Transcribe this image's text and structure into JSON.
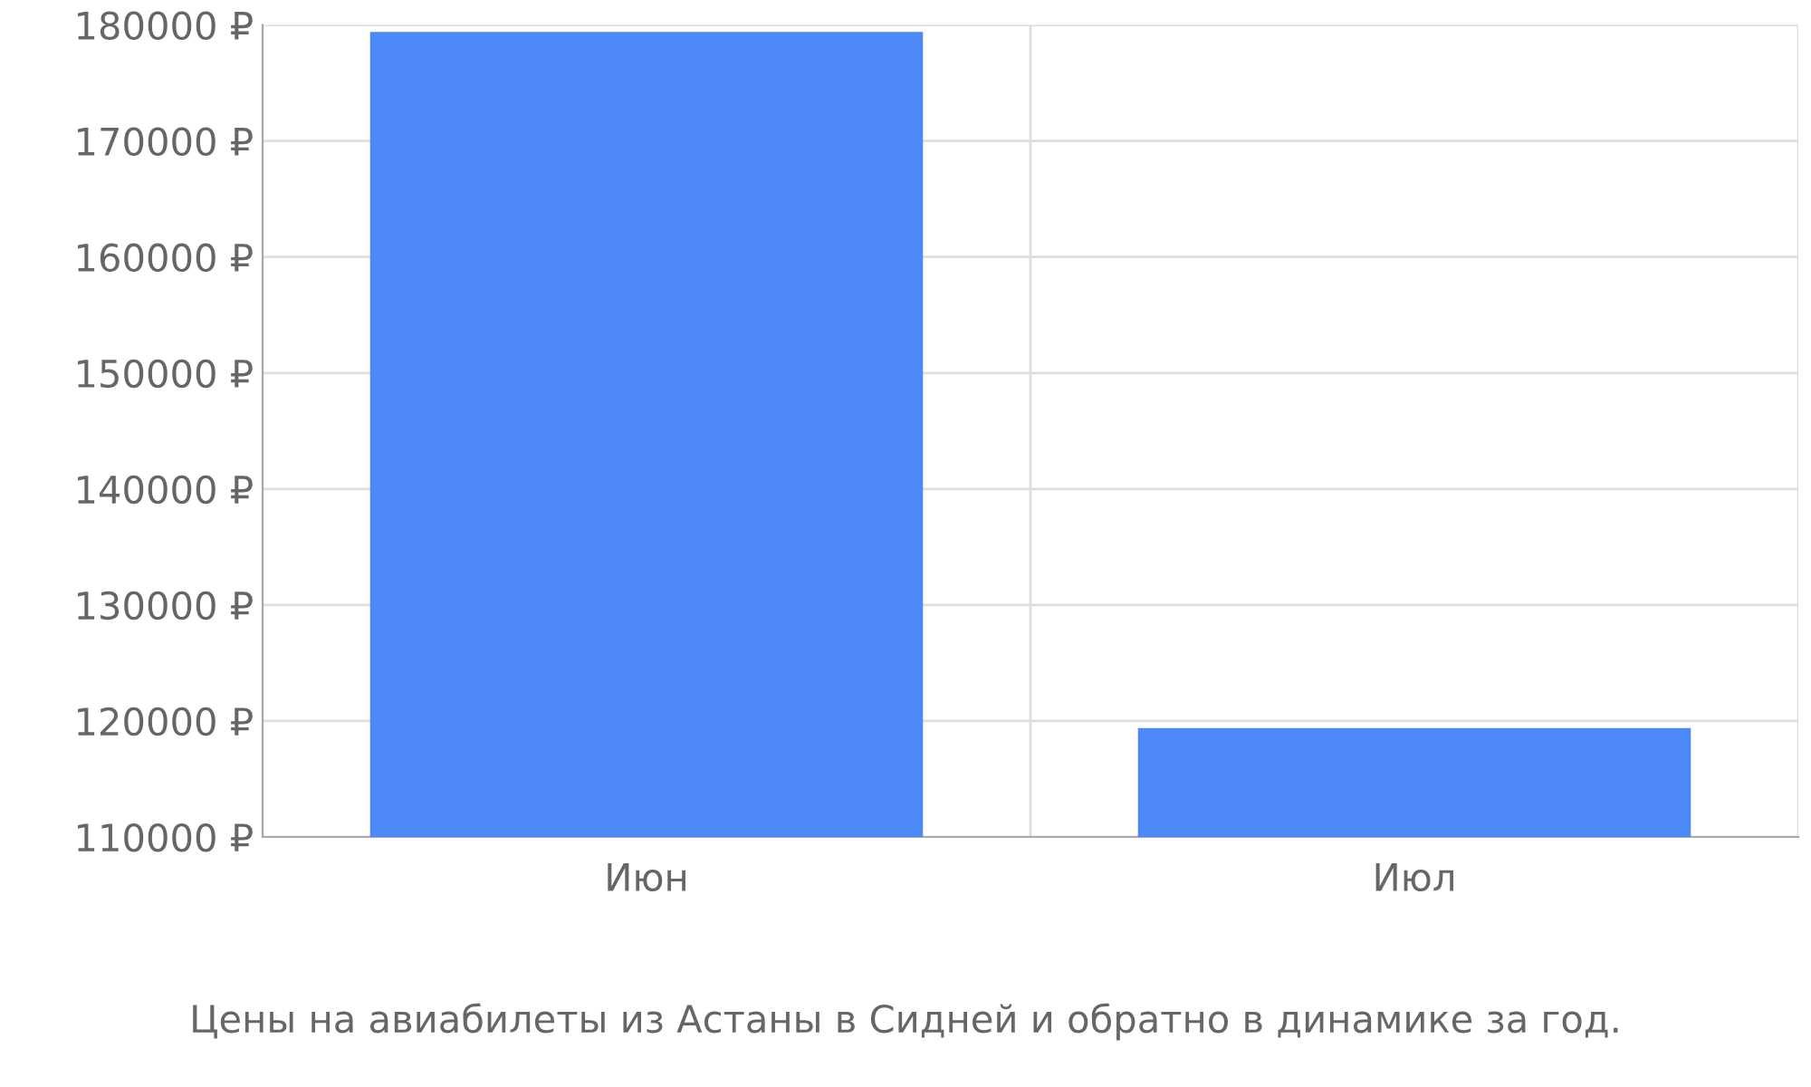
{
  "chart_data": {
    "type": "bar",
    "categories": [
      "Июн",
      "Июл"
    ],
    "values": [
      179400,
      119400
    ],
    "color": "#4d88f9",
    "ylim": [
      110000,
      180000
    ],
    "yticks": [
      {
        "value": 110000,
        "label": "110000 ₽"
      },
      {
        "value": 120000,
        "label": "120000 ₽"
      },
      {
        "value": 130000,
        "label": "130000 ₽"
      },
      {
        "value": 140000,
        "label": "140000 ₽"
      },
      {
        "value": 150000,
        "label": "150000 ₽"
      },
      {
        "value": 160000,
        "label": "160000 ₽"
      },
      {
        "value": 170000,
        "label": "170000 ₽"
      },
      {
        "value": 180000,
        "label": "180000 ₽"
      }
    ],
    "grid": true,
    "annotations": [
      "Цены на авиабилеты из Астаны в Сидней и обратно в динамике за год."
    ]
  }
}
